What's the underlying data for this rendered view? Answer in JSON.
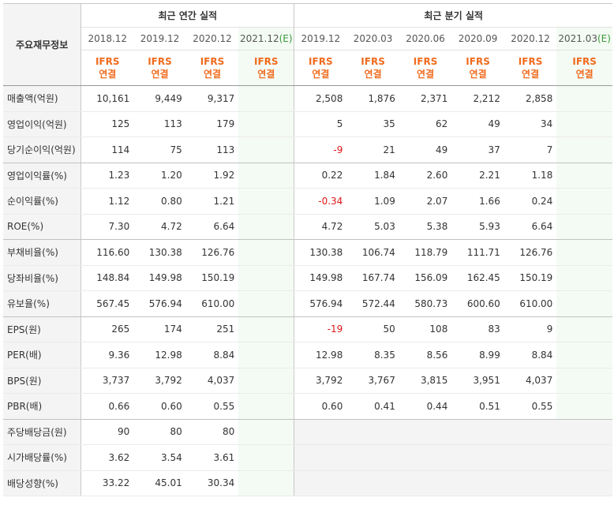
{
  "header": {
    "row_label": "주요재무정보",
    "annual_title": "최근 연간 실적",
    "quarterly_title": "최근 분기 실적",
    "annual_periods": [
      "2018.12",
      "2019.12",
      "2020.12",
      "2021.12"
    ],
    "quarterly_periods": [
      "2019.12",
      "2020.03",
      "2020.06",
      "2020.09",
      "2020.12",
      "2021.03"
    ],
    "estimate_suffix": "(E)",
    "report_type_line1": "IFRS",
    "report_type_line2": "연결"
  },
  "colors": {
    "report_type": "#f06b1e",
    "negative": "#e01616",
    "estimate_bg": "#f4fbf4",
    "label_bg": "#f4f4f4"
  },
  "rows": [
    {
      "label": "매출액(억원)",
      "annual": [
        "10,161",
        "9,449",
        "9,317",
        ""
      ],
      "quarterly": [
        "2,508",
        "1,876",
        "2,371",
        "2,212",
        "2,858",
        ""
      ]
    },
    {
      "label": "영업이익(억원)",
      "annual": [
        "125",
        "113",
        "179",
        ""
      ],
      "quarterly": [
        "5",
        "35",
        "62",
        "49",
        "34",
        ""
      ]
    },
    {
      "label": "당기순이익(억원)",
      "annual": [
        "114",
        "75",
        "113",
        ""
      ],
      "quarterly": [
        "-9",
        "21",
        "49",
        "37",
        "7",
        ""
      ]
    },
    {
      "label": "영업이익률(%)",
      "annual": [
        "1.23",
        "1.20",
        "1.92",
        ""
      ],
      "quarterly": [
        "0.22",
        "1.84",
        "2.60",
        "2.21",
        "1.18",
        ""
      ]
    },
    {
      "label": "순이익률(%)",
      "annual": [
        "1.12",
        "0.80",
        "1.21",
        ""
      ],
      "quarterly": [
        "-0.34",
        "1.09",
        "2.07",
        "1.66",
        "0.24",
        ""
      ]
    },
    {
      "label": "ROE(%)",
      "annual": [
        "7.30",
        "4.72",
        "6.64",
        ""
      ],
      "quarterly": [
        "4.72",
        "5.03",
        "5.38",
        "5.93",
        "6.64",
        ""
      ]
    },
    {
      "label": "부채비율(%)",
      "annual": [
        "116.60",
        "130.38",
        "126.76",
        ""
      ],
      "quarterly": [
        "130.38",
        "106.74",
        "118.79",
        "111.71",
        "126.76",
        ""
      ]
    },
    {
      "label": "당좌비율(%)",
      "annual": [
        "148.84",
        "149.98",
        "150.19",
        ""
      ],
      "quarterly": [
        "149.98",
        "167.74",
        "156.09",
        "162.45",
        "150.19",
        ""
      ]
    },
    {
      "label": "유보율(%)",
      "annual": [
        "567.45",
        "576.94",
        "610.00",
        ""
      ],
      "quarterly": [
        "576.94",
        "572.44",
        "580.73",
        "600.60",
        "610.00",
        ""
      ]
    },
    {
      "label": "EPS(원)",
      "annual": [
        "265",
        "174",
        "251",
        ""
      ],
      "quarterly": [
        "-19",
        "50",
        "108",
        "83",
        "9",
        ""
      ]
    },
    {
      "label": "PER(배)",
      "annual": [
        "9.36",
        "12.98",
        "8.84",
        ""
      ],
      "quarterly": [
        "12.98",
        "8.35",
        "8.56",
        "8.99",
        "8.84",
        ""
      ]
    },
    {
      "label": "BPS(원)",
      "annual": [
        "3,737",
        "3,792",
        "4,037",
        ""
      ],
      "quarterly": [
        "3,792",
        "3,767",
        "3,815",
        "3,951",
        "4,037",
        ""
      ]
    },
    {
      "label": "PBR(배)",
      "annual": [
        "0.66",
        "0.60",
        "0.55",
        ""
      ],
      "quarterly": [
        "0.60",
        "0.41",
        "0.44",
        "0.51",
        "0.55",
        ""
      ]
    },
    {
      "label": "주당배당금(원)",
      "annual": [
        "90",
        "80",
        "80",
        ""
      ],
      "quarterly": [
        "",
        "",
        "",
        "",
        "",
        ""
      ]
    },
    {
      "label": "시가배당률(%)",
      "annual": [
        "3.62",
        "3.54",
        "3.61",
        ""
      ],
      "quarterly": [
        "",
        "",
        "",
        "",
        "",
        ""
      ]
    },
    {
      "label": "배당성향(%)",
      "annual": [
        "33.22",
        "45.01",
        "30.34",
        ""
      ],
      "quarterly": [
        "",
        "",
        "",
        "",
        "",
        ""
      ]
    }
  ]
}
